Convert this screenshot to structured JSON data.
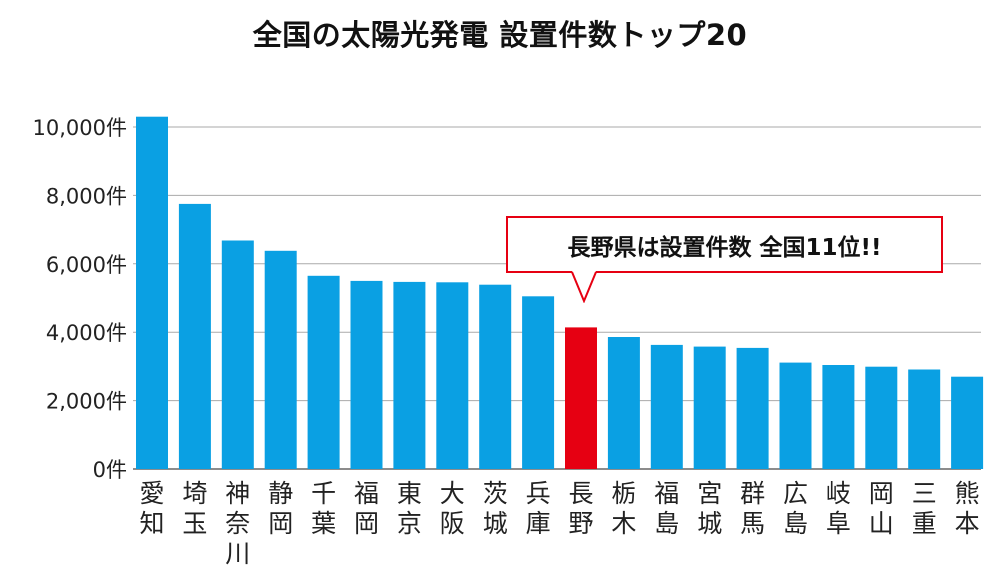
{
  "chart_data": {
    "type": "bar",
    "title": "全国の太陽光発電 設置件数トップ20",
    "categories": [
      "愛知",
      "埼玉",
      "神奈川",
      "静岡",
      "千葉",
      "福岡",
      "東京",
      "大阪",
      "茨城",
      "兵庫",
      "長野",
      "栃木",
      "福島",
      "宮城",
      "群馬",
      "広島",
      "岐阜",
      "岡山",
      "三重",
      "熊本"
    ],
    "values": [
      10300,
      7750,
      6680,
      6380,
      5650,
      5500,
      5470,
      5460,
      5390,
      5050,
      4140,
      3860,
      3630,
      3580,
      3540,
      3110,
      3040,
      2990,
      2910,
      2700
    ],
    "highlight": "長野",
    "ylim": [
      0,
      10000
    ],
    "yticks": [
      {
        "value": 0,
        "label": "0件"
      },
      {
        "value": 2000,
        "label": "2,000件"
      },
      {
        "value": 4000,
        "label": "4,000件"
      },
      {
        "value": 6000,
        "label": "6,000件"
      },
      {
        "value": 8000,
        "label": "8,000件"
      },
      {
        "value": 10000,
        "label": "10,000件"
      }
    ],
    "grid": true,
    "bar_color": "#0aa0e3",
    "highlight_color": "#e60012",
    "annotation": "長野県は設置件数 全国11位!!"
  }
}
